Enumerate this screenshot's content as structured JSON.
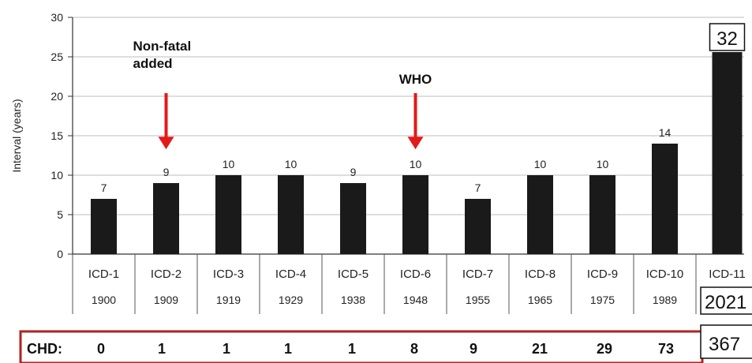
{
  "chart_data": {
    "type": "bar",
    "ylabel": "Interval (years)",
    "ylim": [
      0,
      30
    ],
    "yticks": [
      "0",
      "5",
      "10",
      "15",
      "20",
      "25",
      "30"
    ],
    "grid": true,
    "bar_color": "#1a1a1a",
    "arrow_color": "#e21a1a",
    "highlight_color": "#b22222",
    "categories": [
      "ICD-1",
      "ICD-2",
      "ICD-3",
      "ICD-4",
      "ICD-5",
      "ICD-6",
      "ICD-7",
      "ICD-8",
      "ICD-9",
      "ICD-10",
      "ICD-11"
    ],
    "years": [
      "1900",
      "1909",
      "1919",
      "1929",
      "1938",
      "1948",
      "1955",
      "1965",
      "1975",
      "1989",
      "2021"
    ],
    "values": [
      7,
      9,
      10,
      10,
      9,
      10,
      7,
      10,
      10,
      14,
      32
    ],
    "value_labels": [
      "7",
      "9",
      "10",
      "10",
      "9",
      "10",
      "7",
      "10",
      "10",
      "14",
      "32"
    ],
    "annotations": [
      {
        "category_index": 1,
        "text_lines": [
          "Non-fatal",
          "added"
        ]
      },
      {
        "category_index": 5,
        "text_lines": [
          "WHO"
        ]
      }
    ],
    "chd_row": {
      "label": "CHD:",
      "values": [
        "0",
        "1",
        "1",
        "1",
        "1",
        "8",
        "9",
        "21",
        "29",
        "73",
        "367"
      ]
    }
  }
}
